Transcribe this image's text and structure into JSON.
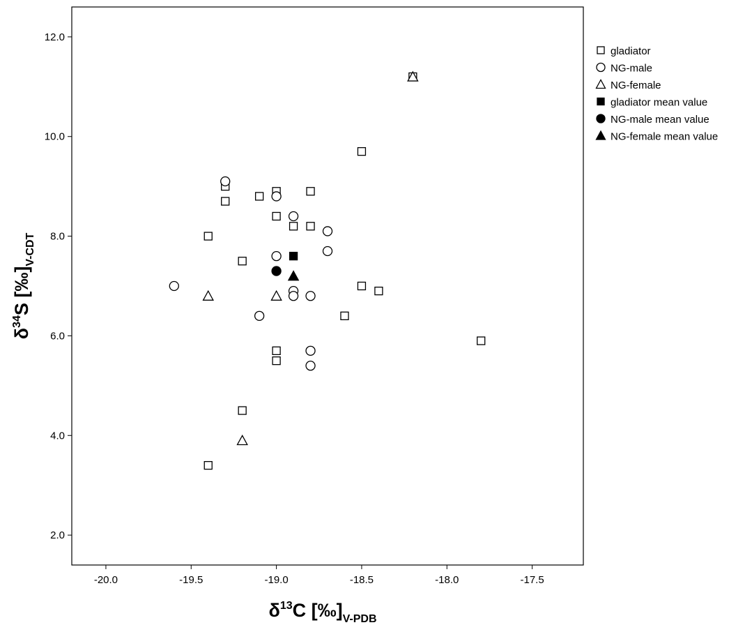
{
  "chart_data": {
    "type": "scatter",
    "title": "",
    "xlabel": {
      "prefix": "δ",
      "sup": "13",
      "main": "C [‰]",
      "sub": "V-PDB"
    },
    "ylabel": {
      "prefix": "δ",
      "sup": "34",
      "main": "S [‰]",
      "sub": "V-CDT"
    },
    "xlim": [
      -20.2,
      -17.2
    ],
    "ylim": [
      1.4,
      12.6
    ],
    "x_ticks": [
      -20.0,
      -19.5,
      -19.0,
      -18.5,
      -18.0,
      -17.5
    ],
    "x_tick_labels": [
      "-20.0",
      "-19.5",
      "-19.0",
      "-18.5",
      "-18.0",
      "-17.5"
    ],
    "y_ticks": [
      2.0,
      4.0,
      6.0,
      8.0,
      10.0,
      12.0
    ],
    "y_tick_labels": [
      "2.0",
      "4.0",
      "6.0",
      "8.0",
      "10.0",
      "12.0"
    ],
    "grid": false,
    "legend_position": "top-right",
    "series": [
      {
        "name": "gladiator",
        "marker": "square-open",
        "points": [
          [
            -19.4,
            3.4
          ],
          [
            -19.2,
            4.5
          ],
          [
            -19.0,
            5.5
          ],
          [
            -19.0,
            5.7
          ],
          [
            -18.6,
            6.4
          ],
          [
            -18.5,
            7.0
          ],
          [
            -18.4,
            6.9
          ],
          [
            -17.8,
            5.9
          ],
          [
            -19.4,
            8.0
          ],
          [
            -19.2,
            7.5
          ],
          [
            -19.3,
            8.7
          ],
          [
            -19.3,
            9.0
          ],
          [
            -19.1,
            8.8
          ],
          [
            -19.0,
            8.9
          ],
          [
            -19.0,
            8.4
          ],
          [
            -18.9,
            8.2
          ],
          [
            -18.8,
            8.2
          ],
          [
            -18.8,
            8.9
          ],
          [
            -18.5,
            9.7
          ],
          [
            -18.2,
            11.2
          ]
        ]
      },
      {
        "name": "NG-male",
        "marker": "circle-open",
        "points": [
          [
            -19.6,
            7.0
          ],
          [
            -19.3,
            9.1
          ],
          [
            -19.0,
            8.8
          ],
          [
            -19.0,
            7.6
          ],
          [
            -18.9,
            8.4
          ],
          [
            -18.7,
            8.1
          ],
          [
            -18.7,
            7.7
          ],
          [
            -19.1,
            6.4
          ],
          [
            -18.9,
            6.9
          ],
          [
            -18.9,
            6.8
          ],
          [
            -18.8,
            6.8
          ],
          [
            -18.8,
            5.7
          ],
          [
            -18.8,
            5.4
          ]
        ]
      },
      {
        "name": "NG-female",
        "marker": "triangle-open",
        "points": [
          [
            -19.4,
            6.8
          ],
          [
            -19.0,
            6.8
          ],
          [
            -19.2,
            3.9
          ],
          [
            -18.2,
            11.2
          ]
        ]
      },
      {
        "name": "gladiator mean value",
        "marker": "square-filled",
        "points": [
          [
            -18.9,
            7.6
          ]
        ]
      },
      {
        "name": "NG-male mean value",
        "marker": "circle-filled",
        "points": [
          [
            -19.0,
            7.3
          ]
        ]
      },
      {
        "name": "NG-female mean value",
        "marker": "triangle-filled",
        "points": [
          [
            -18.9,
            7.2
          ]
        ]
      }
    ]
  }
}
